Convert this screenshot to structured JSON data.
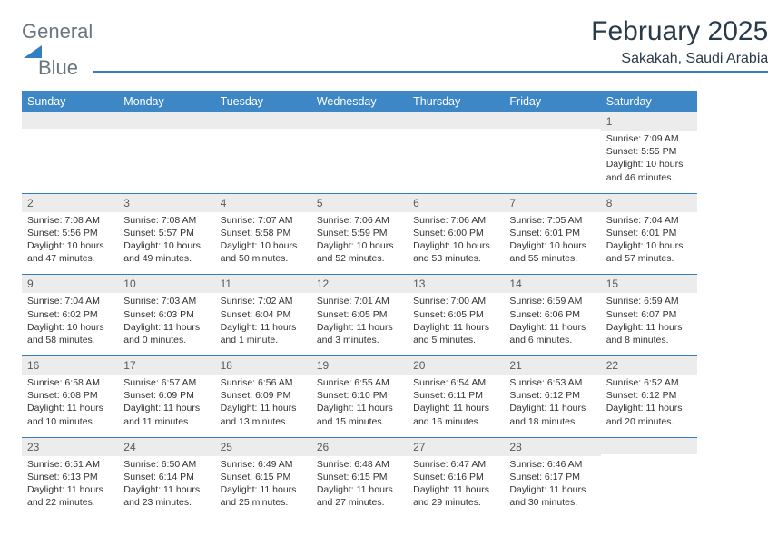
{
  "brand": {
    "part1": "General",
    "part2": "Blue"
  },
  "title": "February 2025",
  "location": "Sakakah, Saudi Arabia",
  "colors": {
    "header_bar": "#3d87c7",
    "rule": "#2f7fc2",
    "daynum_bg": "#ececec",
    "text": "#333333",
    "logo_gray": "#6a7580",
    "logo_blue": "#2f7fc2"
  },
  "weekdays": [
    "Sunday",
    "Monday",
    "Tuesday",
    "Wednesday",
    "Thursday",
    "Friday",
    "Saturday"
  ],
  "weeks": [
    [
      {
        "n": "",
        "t": ""
      },
      {
        "n": "",
        "t": ""
      },
      {
        "n": "",
        "t": ""
      },
      {
        "n": "",
        "t": ""
      },
      {
        "n": "",
        "t": ""
      },
      {
        "n": "",
        "t": ""
      },
      {
        "n": "1",
        "t": "Sunrise: 7:09 AM\nSunset: 5:55 PM\nDaylight: 10 hours and 46 minutes."
      }
    ],
    [
      {
        "n": "2",
        "t": "Sunrise: 7:08 AM\nSunset: 5:56 PM\nDaylight: 10 hours and 47 minutes."
      },
      {
        "n": "3",
        "t": "Sunrise: 7:08 AM\nSunset: 5:57 PM\nDaylight: 10 hours and 49 minutes."
      },
      {
        "n": "4",
        "t": "Sunrise: 7:07 AM\nSunset: 5:58 PM\nDaylight: 10 hours and 50 minutes."
      },
      {
        "n": "5",
        "t": "Sunrise: 7:06 AM\nSunset: 5:59 PM\nDaylight: 10 hours and 52 minutes."
      },
      {
        "n": "6",
        "t": "Sunrise: 7:06 AM\nSunset: 6:00 PM\nDaylight: 10 hours and 53 minutes."
      },
      {
        "n": "7",
        "t": "Sunrise: 7:05 AM\nSunset: 6:01 PM\nDaylight: 10 hours and 55 minutes."
      },
      {
        "n": "8",
        "t": "Sunrise: 7:04 AM\nSunset: 6:01 PM\nDaylight: 10 hours and 57 minutes."
      }
    ],
    [
      {
        "n": "9",
        "t": "Sunrise: 7:04 AM\nSunset: 6:02 PM\nDaylight: 10 hours and 58 minutes."
      },
      {
        "n": "10",
        "t": "Sunrise: 7:03 AM\nSunset: 6:03 PM\nDaylight: 11 hours and 0 minutes."
      },
      {
        "n": "11",
        "t": "Sunrise: 7:02 AM\nSunset: 6:04 PM\nDaylight: 11 hours and 1 minute."
      },
      {
        "n": "12",
        "t": "Sunrise: 7:01 AM\nSunset: 6:05 PM\nDaylight: 11 hours and 3 minutes."
      },
      {
        "n": "13",
        "t": "Sunrise: 7:00 AM\nSunset: 6:05 PM\nDaylight: 11 hours and 5 minutes."
      },
      {
        "n": "14",
        "t": "Sunrise: 6:59 AM\nSunset: 6:06 PM\nDaylight: 11 hours and 6 minutes."
      },
      {
        "n": "15",
        "t": "Sunrise: 6:59 AM\nSunset: 6:07 PM\nDaylight: 11 hours and 8 minutes."
      }
    ],
    [
      {
        "n": "16",
        "t": "Sunrise: 6:58 AM\nSunset: 6:08 PM\nDaylight: 11 hours and 10 minutes."
      },
      {
        "n": "17",
        "t": "Sunrise: 6:57 AM\nSunset: 6:09 PM\nDaylight: 11 hours and 11 minutes."
      },
      {
        "n": "18",
        "t": "Sunrise: 6:56 AM\nSunset: 6:09 PM\nDaylight: 11 hours and 13 minutes."
      },
      {
        "n": "19",
        "t": "Sunrise: 6:55 AM\nSunset: 6:10 PM\nDaylight: 11 hours and 15 minutes."
      },
      {
        "n": "20",
        "t": "Sunrise: 6:54 AM\nSunset: 6:11 PM\nDaylight: 11 hours and 16 minutes."
      },
      {
        "n": "21",
        "t": "Sunrise: 6:53 AM\nSunset: 6:12 PM\nDaylight: 11 hours and 18 minutes."
      },
      {
        "n": "22",
        "t": "Sunrise: 6:52 AM\nSunset: 6:12 PM\nDaylight: 11 hours and 20 minutes."
      }
    ],
    [
      {
        "n": "23",
        "t": "Sunrise: 6:51 AM\nSunset: 6:13 PM\nDaylight: 11 hours and 22 minutes."
      },
      {
        "n": "24",
        "t": "Sunrise: 6:50 AM\nSunset: 6:14 PM\nDaylight: 11 hours and 23 minutes."
      },
      {
        "n": "25",
        "t": "Sunrise: 6:49 AM\nSunset: 6:15 PM\nDaylight: 11 hours and 25 minutes."
      },
      {
        "n": "26",
        "t": "Sunrise: 6:48 AM\nSunset: 6:15 PM\nDaylight: 11 hours and 27 minutes."
      },
      {
        "n": "27",
        "t": "Sunrise: 6:47 AM\nSunset: 6:16 PM\nDaylight: 11 hours and 29 minutes."
      },
      {
        "n": "28",
        "t": "Sunrise: 6:46 AM\nSunset: 6:17 PM\nDaylight: 11 hours and 30 minutes."
      },
      {
        "n": "",
        "t": ""
      }
    ]
  ]
}
